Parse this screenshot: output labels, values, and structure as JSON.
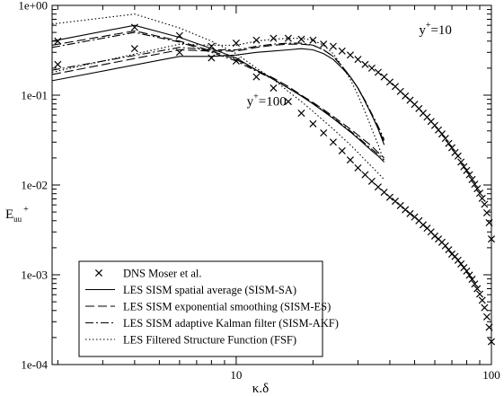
{
  "chart_data": {
    "type": "line",
    "title": "",
    "xlabel": "κ.δ",
    "ylabel_main": "E",
    "ylabel_sub": "uu",
    "ylabel_sup": "+",
    "xscale": "log",
    "yscale": "log",
    "xlim": [
      1.9,
      100
    ],
    "ylim": [
      0.0001,
      1
    ],
    "x_tick_values": [
      10,
      100
    ],
    "x_tick_labels": [
      "10",
      "100"
    ],
    "y_tick_values": [
      0.0001,
      0.001,
      0.01,
      0.1,
      1
    ],
    "y_tick_labels": [
      "1e-04",
      "1e-03",
      "1e-02",
      "1e-01",
      "1e+00"
    ],
    "grid": false,
    "legend_position": "bottom-left",
    "annotations": [
      {
        "text_main": "y",
        "text_sup": "+",
        "text_rest": "=10",
        "x": 52,
        "y": 0.48
      },
      {
        "text_main": "y",
        "text_sup": "+",
        "text_rest": "=100",
        "x": 11,
        "y": 0.077
      }
    ],
    "series": [
      {
        "name": "DNS Moser et al.",
        "style": "cross",
        "group": "y+=10",
        "x": [
          2,
          4,
          6,
          8,
          10,
          12,
          14,
          16,
          18,
          20,
          22,
          24,
          26,
          28,
          30,
          32,
          34,
          36,
          38,
          40,
          42,
          44,
          46,
          48,
          50,
          52,
          54,
          56,
          58,
          60,
          62,
          64,
          66,
          68,
          70,
          72,
          74,
          76,
          78,
          80,
          82,
          84,
          86,
          88,
          90,
          92,
          94,
          96,
          98,
          100
        ],
        "y": [
          0.22,
          0.33,
          0.3,
          0.26,
          0.38,
          0.41,
          0.43,
          0.43,
          0.42,
          0.41,
          0.37,
          0.35,
          0.31,
          0.28,
          0.25,
          0.22,
          0.2,
          0.18,
          0.16,
          0.14,
          0.125,
          0.11,
          0.098,
          0.088,
          0.079,
          0.071,
          0.063,
          0.057,
          0.051,
          0.046,
          0.041,
          0.037,
          0.033,
          0.029,
          0.026,
          0.023,
          0.021,
          0.018,
          0.016,
          0.0145,
          0.013,
          0.0115,
          0.0102,
          0.0091,
          0.0081,
          0.0071,
          0.0061,
          0.0049,
          0.0038,
          0.0025
        ]
      },
      {
        "name": "",
        "style": "cross",
        "group": "y+=100",
        "x": [
          2,
          4,
          6,
          8,
          10,
          12,
          14,
          16,
          18,
          20,
          22,
          24,
          26,
          28,
          30,
          32,
          34,
          36,
          38,
          40,
          42,
          44,
          46,
          48,
          50,
          52,
          54,
          56,
          58,
          60,
          62,
          64,
          66,
          68,
          70,
          72,
          74,
          76,
          78,
          80,
          82,
          84,
          86,
          88,
          90,
          92,
          94,
          96,
          98,
          100
        ],
        "y": [
          0.4,
          0.57,
          0.46,
          0.35,
          0.24,
          0.16,
          0.12,
          0.085,
          0.063,
          0.048,
          0.038,
          0.03,
          0.024,
          0.019,
          0.0155,
          0.013,
          0.011,
          0.0095,
          0.0083,
          0.0073,
          0.0066,
          0.0059,
          0.0053,
          0.0048,
          0.0044,
          0.004,
          0.0036,
          0.0033,
          0.003,
          0.0027,
          0.0025,
          0.0023,
          0.0021,
          0.0019,
          0.0017,
          0.0016,
          0.00145,
          0.00132,
          0.0012,
          0.0011,
          0.00099,
          0.00089,
          0.00079,
          0.0007,
          0.00061,
          0.00052,
          0.00043,
          0.00034,
          0.00026,
          0.00018
        ]
      },
      {
        "name": "LES SISM spatial average (SISM-SA)",
        "style": "solid",
        "group": "y+=10",
        "x": [
          1.9,
          6,
          8,
          10,
          12,
          14,
          16,
          18,
          20,
          22,
          24,
          26,
          28,
          30,
          32,
          34,
          36,
          38
        ],
        "y": [
          0.145,
          0.27,
          0.27,
          0.28,
          0.3,
          0.31,
          0.32,
          0.33,
          0.32,
          0.29,
          0.25,
          0.2,
          0.16,
          0.12,
          0.085,
          0.06,
          0.042,
          0.028
        ]
      },
      {
        "name": "",
        "style": "solid",
        "group": "y+=100",
        "x": [
          1.9,
          4,
          6,
          8,
          10,
          12,
          14,
          16,
          18,
          20,
          22,
          24,
          26,
          28,
          30,
          32,
          34,
          36,
          38
        ],
        "y": [
          0.4,
          0.6,
          0.44,
          0.33,
          0.26,
          0.19,
          0.15,
          0.12,
          0.098,
          0.08,
          0.066,
          0.055,
          0.046,
          0.039,
          0.033,
          0.028,
          0.024,
          0.021,
          0.018
        ]
      },
      {
        "name": "LES SISM exponential smoothing (SISM-ES)",
        "style": "dashed",
        "group": "y+=10",
        "x": [
          1.9,
          6,
          8,
          10,
          12,
          14,
          16,
          18,
          20,
          22,
          24,
          26,
          28,
          30,
          32,
          34,
          36,
          38
        ],
        "y": [
          0.17,
          0.32,
          0.31,
          0.31,
          0.34,
          0.36,
          0.37,
          0.37,
          0.36,
          0.32,
          0.27,
          0.21,
          0.16,
          0.12,
          0.085,
          0.06,
          0.043,
          0.03
        ]
      },
      {
        "name": "",
        "style": "dashed",
        "group": "y+=100",
        "x": [
          1.9,
          4,
          6,
          8,
          10,
          12,
          14,
          16,
          18,
          20,
          22,
          24,
          26,
          28,
          30,
          32,
          34,
          36,
          38
        ],
        "y": [
          0.36,
          0.52,
          0.4,
          0.31,
          0.25,
          0.19,
          0.155,
          0.125,
          0.1,
          0.083,
          0.069,
          0.058,
          0.049,
          0.042,
          0.036,
          0.031,
          0.027,
          0.023,
          0.02
        ]
      },
      {
        "name": "LES SISM adaptive Kalman filter (SISM-AKF)",
        "style": "dashdot",
        "group": "y+=10",
        "x": [
          1.9,
          6,
          8,
          10,
          12,
          14,
          16,
          18,
          20,
          22,
          24,
          26,
          28,
          30,
          32,
          34,
          36,
          38
        ],
        "y": [
          0.19,
          0.34,
          0.32,
          0.32,
          0.35,
          0.37,
          0.38,
          0.38,
          0.36,
          0.32,
          0.27,
          0.21,
          0.16,
          0.12,
          0.087,
          0.062,
          0.045,
          0.032
        ]
      },
      {
        "name": "",
        "style": "dashdot",
        "group": "y+=100",
        "x": [
          1.9,
          4,
          6,
          8,
          10,
          12,
          14,
          16,
          18,
          20,
          22,
          24,
          26,
          28,
          30,
          32,
          34,
          36,
          38
        ],
        "y": [
          0.34,
          0.5,
          0.39,
          0.3,
          0.24,
          0.185,
          0.15,
          0.12,
          0.098,
          0.081,
          0.067,
          0.056,
          0.047,
          0.04,
          0.034,
          0.029,
          0.025,
          0.022,
          0.019
        ]
      },
      {
        "name": "LES Filtered Structure Function (FSF)",
        "style": "dotted",
        "group": "y+=10",
        "x": [
          1.9,
          6,
          8,
          10,
          12,
          14,
          16,
          18,
          20,
          22,
          24,
          26,
          28,
          30,
          32,
          34,
          36,
          38
        ],
        "y": [
          0.18,
          0.37,
          0.36,
          0.36,
          0.4,
          0.42,
          0.43,
          0.43,
          0.41,
          0.36,
          0.29,
          0.21,
          0.15,
          0.1,
          0.065,
          0.042,
          0.028,
          0.018
        ]
      },
      {
        "name": "",
        "style": "dotted",
        "group": "y+=100",
        "x": [
          1.9,
          4,
          6,
          8,
          10,
          12,
          14,
          16,
          18,
          20,
          22,
          24,
          26,
          28,
          30,
          32,
          34,
          36,
          38
        ],
        "y": [
          0.62,
          0.8,
          0.56,
          0.4,
          0.29,
          0.2,
          0.15,
          0.11,
          0.085,
          0.066,
          0.052,
          0.042,
          0.034,
          0.028,
          0.023,
          0.019,
          0.016,
          0.0135,
          0.0115
        ]
      }
    ],
    "legend": [
      {
        "label": "DNS Moser et al.",
        "style": "cross"
      },
      {
        "label": "LES SISM spatial average (SISM-SA)",
        "style": "solid"
      },
      {
        "label": "LES SISM exponential smoothing (SISM-ES)",
        "style": "dashed"
      },
      {
        "label": "LES SISM adaptive Kalman filter (SISM-AKF)",
        "style": "dashdot"
      },
      {
        "label": "LES Filtered Structure Function (FSF)",
        "style": "dotted"
      }
    ]
  }
}
